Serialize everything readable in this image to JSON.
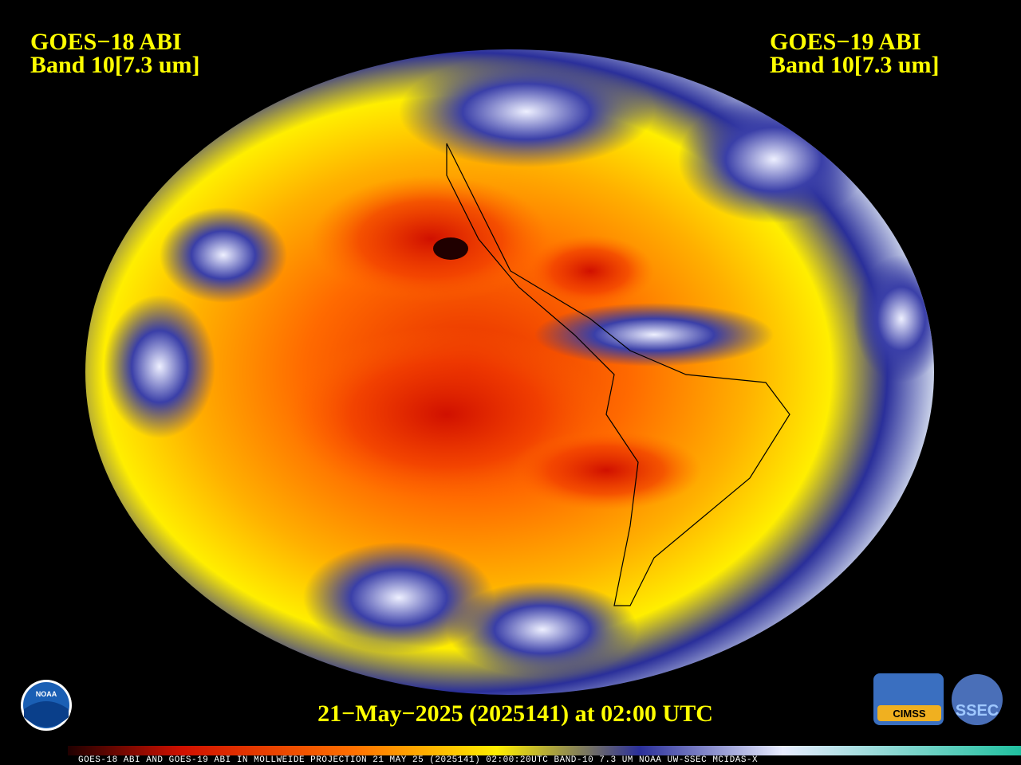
{
  "left_label": {
    "satellite": "GOES−18 ABI",
    "band": "Band 10[7.3 um]"
  },
  "right_label": {
    "satellite": "GOES−19 ABI",
    "band": "Band 10[7.3 um]"
  },
  "timestamp": "21−May−2025 (2025141) at 02:00 UTC",
  "footer": "GOES-18 ABI AND GOES-19 ABI IN MOLLWEIDE PROJECTION 21 MAY 25 (2025141) 02:00:20UTC BAND-10 7.3 UM NOAA UW-SSEC MCIDAS-X",
  "logos": {
    "noaa": "NOAA",
    "cimss": "CIMSS",
    "ssec": "SSEC"
  }
}
